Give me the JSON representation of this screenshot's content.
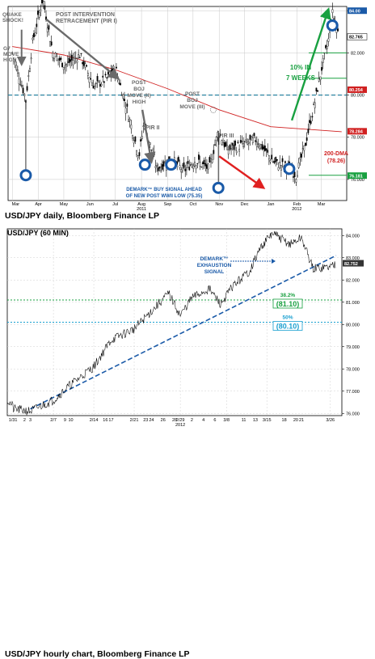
{
  "captions": {
    "daily": "USD/JPY daily, Bloomberg Finance LP",
    "hourly": "USD/JPY hourly chart, Bloomberg Finance LP"
  },
  "chart_data": [
    {
      "type": "line",
      "title": "",
      "x_labels": [
        "Mar",
        "Apr",
        "May",
        "Jun",
        "Jul",
        "Aug",
        "Sep",
        "Oct",
        "Nov",
        "Dec",
        "Jan",
        "Feb",
        "Mar"
      ],
      "x_year_labels": [
        {
          "label": "2011",
          "after": "Aug"
        },
        {
          "label": "2012",
          "after": "Feb"
        }
      ],
      "ylim": [
        75.0,
        84.2
      ],
      "y_ticks": [
        76.0,
        78.0,
        80.0,
        82.0,
        84.0
      ],
      "price_boxes": [
        "84.00",
        "82.765",
        "80.254",
        "78.284",
        "76.181"
      ],
      "grid": true,
      "series": [
        {
          "name": "",
          "kind": "candlestick-close",
          "color": "#000000",
          "x": [
            "2011-03-01",
            "2011-03-17",
            "2011-03-25",
            "2011-04-06",
            "2011-04-18",
            "2011-05-02",
            "2011-05-20",
            "2011-06-06",
            "2011-06-22",
            "2011-07-01",
            "2011-07-15",
            "2011-07-29",
            "2011-08-04",
            "2011-08-19",
            "2011-09-05",
            "2011-09-20",
            "2011-10-03",
            "2011-10-20",
            "2011-10-31",
            "2011-11-10",
            "2011-11-25",
            "2011-12-15",
            "2012-01-05",
            "2012-01-20",
            "2012-01-31",
            "2012-02-10",
            "2012-02-22",
            "2012-03-01",
            "2012-03-09",
            "2012-03-14",
            "2012-03-22"
          ],
          "y": [
            82.0,
            79.8,
            82.5,
            84.6,
            82.0,
            81.4,
            81.9,
            80.4,
            80.8,
            81.3,
            79.3,
            77.1,
            78.7,
            76.5,
            77.0,
            76.4,
            76.9,
            76.5,
            78.3,
            77.4,
            77.6,
            77.9,
            76.8,
            76.6,
            76.2,
            77.5,
            79.6,
            81.2,
            82.5,
            83.9,
            82.8
          ]
        },
        {
          "name": "200-DMA",
          "color": "#d02020",
          "x": [
            "2011-03-01",
            "2011-05-01",
            "2011-07-01",
            "2011-09-01",
            "2011-11-01",
            "2012-01-01",
            "2012-03-25"
          ],
          "y": [
            82.3,
            81.9,
            81.2,
            80.3,
            79.3,
            78.5,
            78.26
          ]
        }
      ],
      "hlines": [
        {
          "name": "dashed-level",
          "y": 80.0,
          "color": "#1a7a9a"
        },
        {
          "name": "green-level-1",
          "y": 82.0,
          "color": "#18a040"
        },
        {
          "name": "green-level-2",
          "y": 80.8,
          "color": "#18a040"
        },
        {
          "name": "green-level-3",
          "y": 76.2,
          "color": "#18a040"
        }
      ],
      "annotations": [
        "QUAKE SHOCK!",
        "G7 MOVE HIGH",
        "POST INTERVENTION RETRACEMENT (PIR I)",
        "POST BOJ MOVE (II) HIGH",
        "PIR II",
        "POST BOJ MOVE (III)",
        "PIR III",
        "DEMARK™ BUY SIGNAL AHEAD OF NEW POST WWII LOW (75.35)",
        "10% IN 7 WEEKS",
        "200-DMA (78.26)"
      ],
      "signal_markers": [
        "buy",
        "buy",
        "buy",
        "buy",
        "buy",
        "sell"
      ]
    },
    {
      "type": "line",
      "title": "USD/JPY (60 MIN)",
      "x_labels": [
        "1/31",
        "2",
        "3",
        "2/7",
        "9",
        "10",
        "2/14",
        "16",
        "17",
        "2/21",
        "23",
        "24",
        "26",
        "28",
        "2/29",
        "2",
        "4",
        "6",
        "3/8",
        "11",
        "13",
        "3/15",
        "18",
        "20",
        "21",
        "3/26"
      ],
      "x_year_label": "2012",
      "ylim": [
        75.9,
        84.3
      ],
      "y_ticks": [
        76.0,
        77.0,
        78.0,
        79.0,
        80.0,
        81.0,
        82.0,
        83.0,
        84.0
      ],
      "price_box": "82.752",
      "grid": true,
      "series": [
        {
          "name": "",
          "kind": "price",
          "color": "#000000",
          "x": [
            "2012-01-31",
            "2012-02-03",
            "2012-02-07",
            "2012-02-10",
            "2012-02-14",
            "2012-02-17",
            "2012-02-21",
            "2012-02-24",
            "2012-02-27",
            "2012-02-29",
            "2012-03-02",
            "2012-03-05",
            "2012-03-07",
            "2012-03-09",
            "2012-03-12",
            "2012-03-14",
            "2012-03-16",
            "2012-03-19",
            "2012-03-21",
            "2012-03-23",
            "2012-03-26",
            "2012-03-27"
          ],
          "y": [
            76.2,
            76.1,
            76.6,
            77.3,
            78.1,
            79.3,
            79.8,
            80.6,
            81.4,
            80.4,
            81.2,
            81.6,
            80.9,
            81.7,
            82.4,
            83.5,
            84.1,
            83.6,
            83.9,
            82.5,
            82.6,
            82.75
          ]
        }
      ],
      "hlines": [
        {
          "name": "fib-38.2",
          "y": 81.1,
          "color": "#18a040"
        },
        {
          "name": "fib-50",
          "y": 80.1,
          "color": "#1aa0d0"
        }
      ],
      "trendline": {
        "from": {
          "x": "2012-02-03",
          "y": 76.2
        },
        "to": {
          "x": "2012-03-27",
          "y": 83.1
        }
      },
      "annotations": [
        "DEMARK™ EXHAUSTION SIGNAL",
        "38.2%",
        "(81.10)",
        "50%",
        "(80.10)"
      ]
    }
  ]
}
